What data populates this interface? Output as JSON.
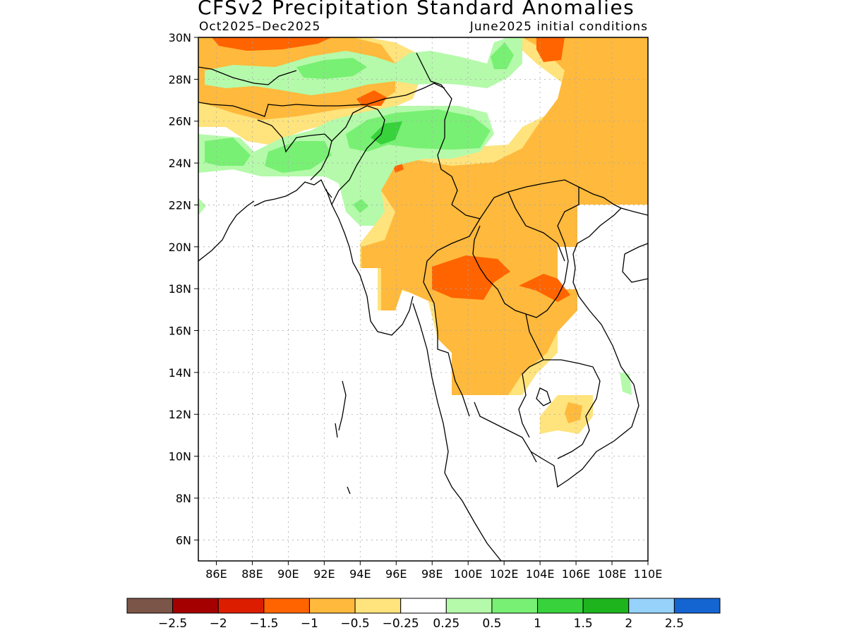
{
  "title": "CFSv2 Precipitation Standard Anomalies",
  "subtitle_left": "Oct2025–Dec2025",
  "subtitle_right": "June2025 initial conditions",
  "map": {
    "lon_range": [
      85,
      110
    ],
    "lat_range": [
      5,
      30
    ],
    "lat_ticks": [
      "6N",
      "8N",
      "10N",
      "12N",
      "14N",
      "16N",
      "18N",
      "20N",
      "22N",
      "24N",
      "26N",
      "28N",
      "30N"
    ],
    "lon_ticks": [
      "86E",
      "88E",
      "90E",
      "92E",
      "94E",
      "96E",
      "98E",
      "100E",
      "102E",
      "104E",
      "106E",
      "108E",
      "110E"
    ]
  },
  "colorbar": {
    "colors": [
      "#7b5548",
      "#a50000",
      "#dc1d00",
      "#ff6400",
      "#ffb93c",
      "#ffe37c",
      "#ffffff",
      "#b4faaa",
      "#78f073",
      "#37d23c",
      "#1eb41e",
      "#96d2fa",
      "#1464d2"
    ],
    "labels": [
      "−2.5",
      "−2",
      "−1.5",
      "−1",
      "−0.5",
      "−0.25",
      "0.25",
      "0.5",
      "1",
      "1.5",
      "2",
      "2.5"
    ]
  }
}
